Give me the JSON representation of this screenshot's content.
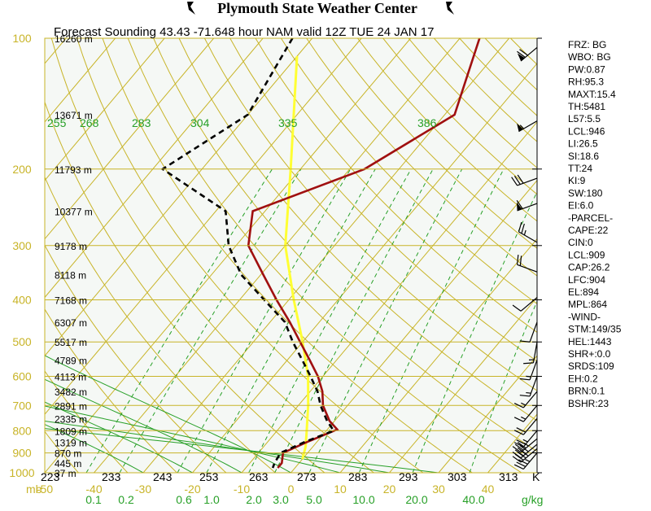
{
  "header": {
    "title": "Plymouth State Weather Center",
    "subtitle": "Forecast Sounding 43.43 -71.648 hour NAM valid 12Z TUE 24 JAN 17"
  },
  "colors": {
    "plot_bg": "#f5f8f5",
    "isobar": "#c8b428",
    "isotherm": "#c8b428",
    "dry_adiabat": "#28a028",
    "moist_adiabat": "#28a028",
    "mixing_ratio": "#28a028",
    "temperature": "#a01010",
    "dewpoint": "#000000",
    "freezing": "#ffff33",
    "pressure_label": "#c8b428",
    "height_label": "#000000",
    "theta_label": "#28a028"
  },
  "chart_data": {
    "type": "skew-t",
    "pressure_axis": {
      "unit_label": "mb",
      "range_mb": [
        1000,
        100
      ],
      "scale": "log",
      "ticks": [
        100,
        200,
        300,
        400,
        500,
        600,
        700,
        800,
        900,
        1000
      ]
    },
    "heights": [
      {
        "p": 100,
        "label": "16260 m"
      },
      {
        "p": 150,
        "label": "13671 m"
      },
      {
        "p": 200,
        "label": "11793 m"
      },
      {
        "p": 250,
        "label": "10377 m"
      },
      {
        "p": 300,
        "label": "9178 m"
      },
      {
        "p": 350,
        "label": "8118 m"
      },
      {
        "p": 400,
        "label": "7168 m"
      },
      {
        "p": 450,
        "label": "6307 m"
      },
      {
        "p": 500,
        "label": "5517 m"
      },
      {
        "p": 550,
        "label": "4789 m"
      },
      {
        "p": 600,
        "label": "4113 m"
      },
      {
        "p": 650,
        "label": "3482 m"
      },
      {
        "p": 700,
        "label": "2891 m"
      },
      {
        "p": 750,
        "label": "2335 m"
      },
      {
        "p": 800,
        "label": "1809 m"
      },
      {
        "p": 850,
        "label": "1319 m"
      },
      {
        "p": 900,
        "label": "870 m"
      },
      {
        "p": 950,
        "label": "445 m"
      },
      {
        "p": 1000,
        "label": "37 m"
      }
    ],
    "temperature_axis": {
      "ticks": [
        -50,
        -40,
        -30,
        -20,
        -10,
        0,
        10,
        20,
        30,
        40
      ]
    },
    "kelvin_axis": {
      "ticks": [
        "223",
        "233",
        "243",
        "253",
        "263",
        "273",
        "283",
        "293",
        "303",
        "313"
      ],
      "unit": "K"
    },
    "mixing_ratio_axis": {
      "ticks": [
        {
          "w": 0.1,
          "label": "0.1"
        },
        {
          "w": 0.2,
          "label": "0.2"
        },
        {
          "w": 0.6,
          "label": "0.6"
        },
        {
          "w": 1.0,
          "label": "1.0"
        },
        {
          "w": 2.0,
          "label": "2.0"
        },
        {
          "w": 3.0,
          "label": "3.0"
        },
        {
          "w": 5.0,
          "label": "5.0"
        },
        {
          "w": 10.0,
          "label": "10.0"
        },
        {
          "w": 20.0,
          "label": "20.0"
        },
        {
          "w": 40.0,
          "label": "40.0"
        }
      ],
      "unit": "g/kg"
    },
    "theta_labels": [
      "255",
      "268",
      "283",
      "304",
      "335",
      "386"
    ],
    "series": [
      {
        "name": "Temperature",
        "points": [
          {
            "p": 100,
            "t": -36.0
          },
          {
            "p": 150,
            "t": -28.0
          },
          {
            "p": 200,
            "t": -37.0
          },
          {
            "p": 250,
            "t": -52.5
          },
          {
            "p": 300,
            "t": -47.5
          },
          {
            "p": 350,
            "t": -39.5
          },
          {
            "p": 400,
            "t": -32.5
          },
          {
            "p": 450,
            "t": -26.0
          },
          {
            "p": 500,
            "t": -20.5
          },
          {
            "p": 550,
            "t": -15.5
          },
          {
            "p": 600,
            "t": -11.0
          },
          {
            "p": 650,
            "t": -7.5
          },
          {
            "p": 700,
            "t": -5.0
          },
          {
            "p": 760,
            "t": -1.0
          },
          {
            "p": 795,
            "t": 2.0
          },
          {
            "p": 850,
            "t": -2.0
          },
          {
            "p": 900,
            "t": -5.0
          },
          {
            "p": 950,
            "t": -3.5
          },
          {
            "p": 975,
            "t": -3.5
          }
        ]
      },
      {
        "name": "Dewpoint",
        "points": [
          {
            "p": 100,
            "t": -74.0
          },
          {
            "p": 150,
            "t": -70.0
          },
          {
            "p": 200,
            "t": -78.0
          },
          {
            "p": 250,
            "t": -58.0
          },
          {
            "p": 300,
            "t": -51.5
          },
          {
            "p": 350,
            "t": -44.0
          },
          {
            "p": 400,
            "t": -35.0
          },
          {
            "p": 450,
            "t": -27.0
          },
          {
            "p": 500,
            "t": -22.0
          },
          {
            "p": 550,
            "t": -17.0
          },
          {
            "p": 600,
            "t": -12.5
          },
          {
            "p": 650,
            "t": -8.5
          },
          {
            "p": 700,
            "t": -5.5
          },
          {
            "p": 760,
            "t": -1.5
          },
          {
            "p": 800,
            "t": 1.5
          },
          {
            "p": 850,
            "t": -2.5
          },
          {
            "p": 900,
            "t": -5.5
          },
          {
            "p": 950,
            "t": -5.0
          },
          {
            "p": 975,
            "t": -4.5
          }
        ]
      }
    ],
    "freezing_level": [
      {
        "p": 110,
        "t": -70.0
      },
      {
        "p": 200,
        "t": -52.0
      },
      {
        "p": 300,
        "t": -40.0
      },
      {
        "p": 400,
        "t": -29.0
      },
      {
        "p": 500,
        "t": -20.0
      },
      {
        "p": 600,
        "t": -13.0
      },
      {
        "p": 700,
        "t": -8.0
      },
      {
        "p": 800,
        "t": -4.0
      },
      {
        "p": 870,
        "t": -1.5
      },
      {
        "p": 930,
        "t": 0.0
      }
    ],
    "wind_barbs": [
      {
        "p": 105,
        "dir": 230,
        "spd": 70
      },
      {
        "p": 155,
        "dir": 240,
        "spd": 55
      },
      {
        "p": 210,
        "dir": 250,
        "spd": 30
      },
      {
        "p": 240,
        "dir": 250,
        "spd": 60
      },
      {
        "p": 295,
        "dir": 300,
        "spd": 25
      },
      {
        "p": 345,
        "dir": 290,
        "spd": 20
      },
      {
        "p": 395,
        "dir": 230,
        "spd": 10
      },
      {
        "p": 450,
        "dir": 200,
        "spd": 10
      },
      {
        "p": 500,
        "dir": 190,
        "spd": 15
      },
      {
        "p": 550,
        "dir": 200,
        "spd": 15
      },
      {
        "p": 600,
        "dir": 200,
        "spd": 15
      },
      {
        "p": 650,
        "dir": 220,
        "spd": 15
      },
      {
        "p": 700,
        "dir": 220,
        "spd": 15
      },
      {
        "p": 750,
        "dir": 220,
        "spd": 20
      },
      {
        "p": 800,
        "dir": 220,
        "spd": 25
      },
      {
        "p": 835,
        "dir": 230,
        "spd": 35
      },
      {
        "p": 860,
        "dir": 230,
        "spd": 40
      },
      {
        "p": 880,
        "dir": 230,
        "spd": 40
      },
      {
        "p": 900,
        "dir": 220,
        "spd": 35
      }
    ]
  },
  "side_panel": [
    "FRZ: BG",
    "WBO: BG",
    "PW:0.87",
    "RH:95.3",
    "MAXT:15.4",
    "TH:5481",
    "L57:5.5",
    "LCL:946",
    "LI:26.5",
    "SI:18.6",
    "TT:24",
    "KI:9",
    "SW:180",
    "EI:6.0",
    "-PARCEL-",
    "CAPE:22",
    "CIN:0",
    "LCL:909",
    "CAP:26.2",
    "LFC:904",
    "EL:894",
    "MPL:864",
    "-WIND-",
    "STM:149/35",
    "HEL:1443",
    "SHR+:0.0",
    "SRDS:109",
    "EH:0.2",
    "BRN:0.1",
    "BSHR:23"
  ]
}
